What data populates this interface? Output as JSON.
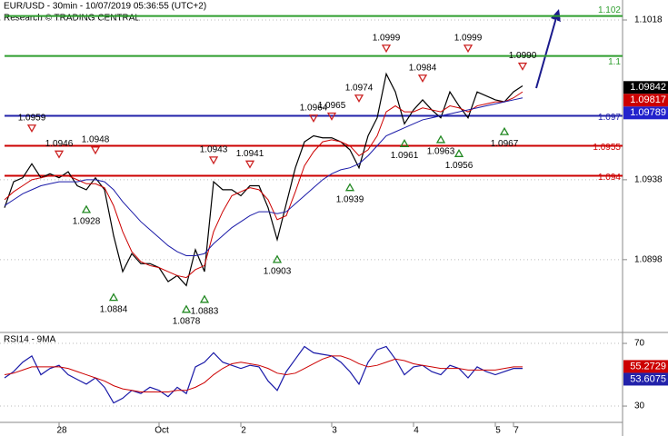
{
  "chart_data": [
    {
      "type": "line",
      "title": "EUR/USD - 30min - 10/07/2019 05:36:55 (UTC+2)",
      "subtitle": "Research © TRADING CENTRAL",
      "categories": [
        null,
        null,
        null,
        null,
        null,
        null,
        "28",
        null,
        null,
        null,
        null,
        null,
        null,
        null,
        null,
        null,
        null,
        "Oct",
        null,
        null,
        null,
        null,
        null,
        null,
        null,
        null,
        "2",
        null,
        null,
        null,
        null,
        null,
        null,
        null,
        null,
        null,
        "3",
        null,
        null,
        null,
        null,
        null,
        null,
        null,
        null,
        "4",
        null,
        null,
        null,
        null,
        null,
        null,
        null,
        null,
        "5",
        null,
        "7",
        null
      ],
      "series": [
        {
          "color": "#000000",
          "values": [
            1.0924,
            1.0937,
            1.0939,
            1.0946,
            1.0939,
            1.0941,
            1.0939,
            1.0942,
            1.0935,
            1.0933,
            1.0939,
            1.0933,
            1.091,
            1.0892,
            1.0901,
            1.0896,
            1.0896,
            1.0894,
            1.0887,
            1.089,
            1.0885,
            1.0903,
            1.0892,
            1.0937,
            1.0933,
            1.0933,
            1.093,
            1.0935,
            1.0935,
            1.0924,
            1.0908,
            1.0926,
            1.0944,
            1.0957,
            1.096,
            1.0959,
            1.0959,
            1.0957,
            1.0953,
            1.0944,
            1.096,
            1.0969,
            1.0991,
            1.0982,
            1.0966,
            1.0973,
            1.0978,
            1.0973,
            1.0969,
            1.0982,
            1.0975,
            1.0969,
            1.0982,
            1.098,
            1.0978,
            1.0977,
            1.0982,
            1.0985
          ]
        },
        {
          "color": "#cc0000",
          "values": [
            1.0928,
            1.0932,
            1.0935,
            1.0938,
            1.0939,
            1.094,
            1.094,
            1.094,
            1.0938,
            1.0936,
            1.0936,
            1.0934,
            1.0925,
            1.0912,
            1.0902,
            1.0897,
            1.0895,
            1.0894,
            1.0892,
            1.089,
            1.0889,
            1.0893,
            1.0895,
            1.0912,
            1.0922,
            1.093,
            1.0932,
            1.0934,
            1.0933,
            1.0928,
            1.0918,
            1.092,
            1.0932,
            1.0945,
            1.0952,
            1.0957,
            1.0958,
            1.0957,
            1.0955,
            1.095,
            1.0953,
            1.096,
            1.0972,
            1.0975,
            1.0972,
            1.0972,
            1.0974,
            1.0973,
            1.0972,
            1.0975,
            1.0974,
            1.0972,
            1.0975,
            1.0976,
            1.0977,
            1.0977,
            1.0979,
            1.0982
          ]
        },
        {
          "color": "#1a1aa8",
          "values": [
            1.0925,
            1.0928,
            1.0931,
            1.0933,
            1.0935,
            1.0936,
            1.0937,
            1.0937,
            1.0937,
            1.0938,
            1.0938,
            1.0937,
            1.0933,
            1.0927,
            1.0922,
            1.0917,
            1.0913,
            1.0909,
            1.0905,
            1.0902,
            1.09,
            1.09,
            1.0901,
            1.0906,
            1.091,
            1.0914,
            1.0917,
            1.092,
            1.0922,
            1.0922,
            1.0921,
            1.0922,
            1.0926,
            1.093,
            1.0934,
            1.0938,
            1.0941,
            1.0943,
            1.0944,
            1.0946,
            1.095,
            1.0955,
            1.096,
            1.0962,
            1.0964,
            1.0966,
            1.0968,
            1.0969,
            1.097,
            1.0971,
            1.0972,
            1.0973,
            1.0974,
            1.0975,
            1.0976,
            1.0977,
            1.0978,
            1.0979
          ]
        }
      ],
      "ylim": [
        1.0862,
        1.1028
      ],
      "yticks": [
        1.0898,
        1.0938,
        1.1018
      ],
      "grid": true,
      "levels": [
        {
          "value": 1.102,
          "color": "#2e9e2e"
        },
        {
          "value": 1.1,
          "color": "#2e9e2e"
        },
        {
          "value": 1.097,
          "color": "#2222aa"
        },
        {
          "value": 1.0955,
          "color": "#cc0000"
        },
        {
          "value": 1.094,
          "color": "#cc0000"
        }
      ],
      "annotations": [
        {
          "value": 1.0959,
          "x": 3,
          "kind": "high"
        },
        {
          "value": 1.0946,
          "x": 6,
          "kind": "high"
        },
        {
          "value": 1.0948,
          "x": 10,
          "kind": "high"
        },
        {
          "value": 1.0943,
          "x": 23,
          "kind": "high"
        },
        {
          "value": 1.0941,
          "x": 27,
          "kind": "high"
        },
        {
          "value": 1.0964,
          "x": 34,
          "kind": "high"
        },
        {
          "value": 1.0965,
          "x": 36,
          "kind": "high"
        },
        {
          "value": 1.0974,
          "x": 39,
          "kind": "high"
        },
        {
          "value": 1.0999,
          "x": 42,
          "kind": "high"
        },
        {
          "value": 1.0984,
          "x": 46,
          "kind": "high"
        },
        {
          "value": 1.0999,
          "x": 51,
          "kind": "high"
        },
        {
          "value": {
            "value": 1.099,
            "label": "1.0990"
          },
          "x": 57,
          "kind": "high"
        },
        {
          "value": 1.0928,
          "x": 9,
          "kind": "low"
        },
        {
          "value": 1.0884,
          "x": 12,
          "kind": "low"
        },
        {
          "value": 1.0878,
          "x": 20,
          "kind": "low"
        },
        {
          "value": 1.0883,
          "x": 22,
          "kind": "low"
        },
        {
          "value": 1.0903,
          "x": 30,
          "kind": "low"
        },
        {
          "value": 1.0939,
          "x": 38,
          "kind": "low"
        },
        {
          "value": 1.0961,
          "x": 44,
          "kind": "low"
        },
        {
          "value": 1.0963,
          "x": 48,
          "kind": "low"
        },
        {
          "value": 1.0956,
          "x": 50,
          "kind": "low"
        },
        {
          "value": 1.0967,
          "x": 55,
          "kind": "low"
        }
      ],
      "price_badges": [
        {
          "value": 1.09842,
          "color": "#000000"
        },
        {
          "value": 1.09817,
          "color": "#cc0000"
        },
        {
          "value": 1.09789,
          "color": "#2222cc"
        }
      ]
    },
    {
      "type": "line",
      "title": "RSI14 - 9MA",
      "series": [
        {
          "color": "#1a1aa8",
          "values": [
            48,
            52,
            58,
            62,
            50,
            54,
            56,
            50,
            47,
            44,
            48,
            42,
            32,
            35,
            40,
            38,
            42,
            40,
            36,
            42,
            38,
            55,
            58,
            64,
            58,
            56,
            54,
            56,
            55,
            46,
            40,
            52,
            60,
            68,
            64,
            63,
            62,
            58,
            52,
            44,
            58,
            66,
            68,
            60,
            50,
            55,
            56,
            52,
            50,
            56,
            54,
            48,
            55,
            52,
            50,
            52,
            54,
            54
          ]
        },
        {
          "color": "#cc0000",
          "values": [
            50,
            51,
            53,
            55,
            55,
            55,
            55,
            54,
            52,
            50,
            48,
            46,
            43,
            41,
            40,
            39,
            39,
            39,
            39,
            40,
            40,
            42,
            45,
            50,
            54,
            57,
            58,
            57,
            56,
            54,
            51,
            50,
            51,
            54,
            57,
            60,
            62,
            62,
            60,
            57,
            55,
            56,
            58,
            60,
            59,
            57,
            56,
            55,
            54,
            54,
            54,
            53,
            53,
            53,
            53,
            54,
            55,
            55
          ]
        }
      ],
      "ylim": [
        19.6,
        76.4
      ],
      "yticks": [
        30,
        70
      ],
      "grid": true,
      "price_badges": [
        {
          "value": 55.2729,
          "color": "#cc0000"
        },
        {
          "value": 53.6075,
          "color": "#2222aa"
        }
      ]
    }
  ]
}
